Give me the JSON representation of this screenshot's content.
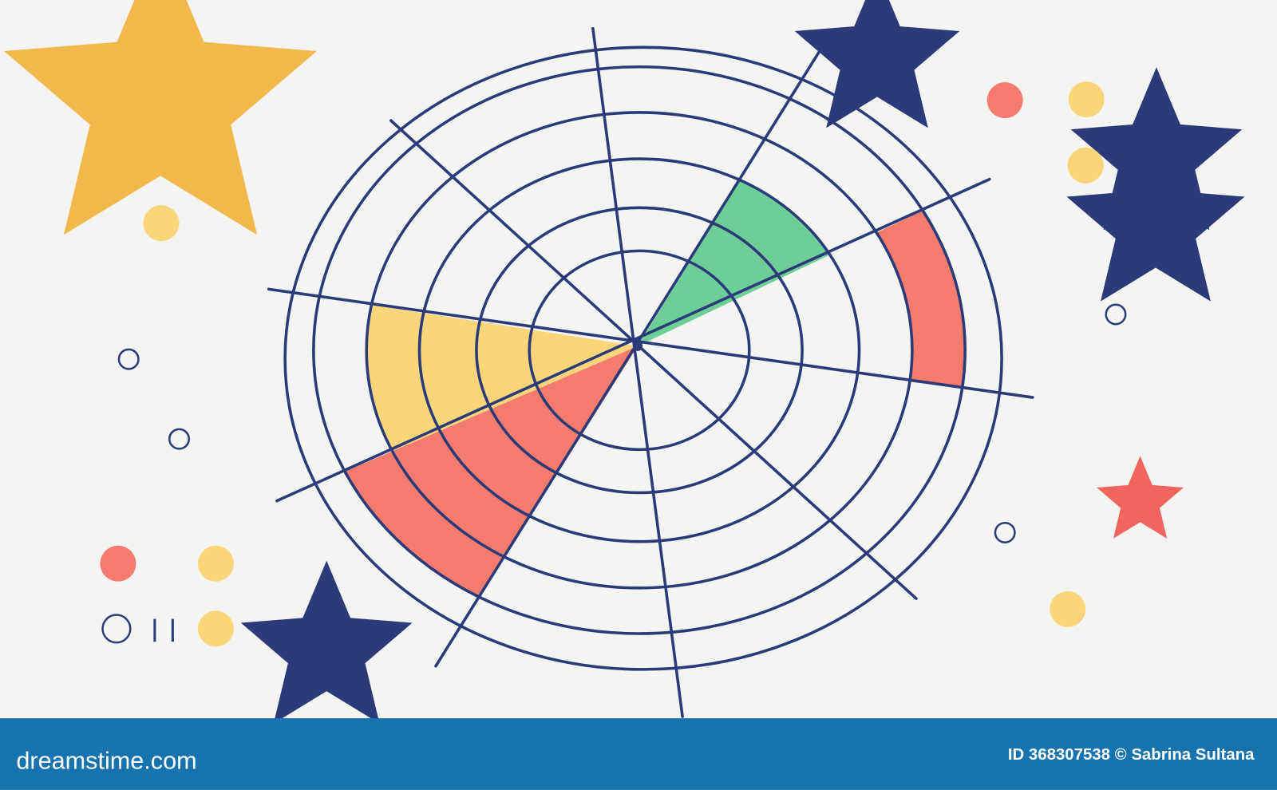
{
  "footer": {
    "site": "dreamstime.com",
    "credit": "ID 368307538 © Sabrina Sultana"
  }
}
